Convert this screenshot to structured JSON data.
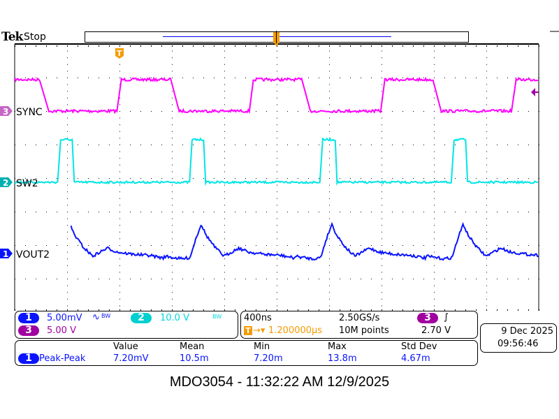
{
  "header": {
    "brand": "Tek",
    "acq_state": "Stop"
  },
  "colors": {
    "ch1": "#0a14ff",
    "ch2": "#00e5e5",
    "ch3": "#ff00ff",
    "ch3_badge": "#a000a0",
    "trigger": "#f59b00"
  },
  "channels": [
    {
      "num": "1",
      "label": "VOUT2",
      "scale": "5.00mV",
      "coupling_icon": "∿",
      "bw": "BW"
    },
    {
      "num": "2",
      "label": "SW2",
      "scale": "10.0 V",
      "bw": "BW"
    },
    {
      "num": "3",
      "label": "SYNC",
      "scale": "5.00 V"
    }
  ],
  "timebase": {
    "scale": "400ns",
    "sample_rate": "2.50GS/s",
    "delay": "1.200000µs",
    "record": "10M points"
  },
  "trigger": {
    "source": "3",
    "slope": "rising",
    "slope_glyph": "∫",
    "level": "2.70 V",
    "marker": "T"
  },
  "datetime": {
    "date": "9 Dec  2025",
    "time": "09:56:46"
  },
  "measurement": {
    "headers": [
      "Value",
      "Mean",
      "Min",
      "Max",
      "Std Dev"
    ],
    "row": {
      "source": "1",
      "name": "Peak-Peak",
      "values": [
        "7.20mV",
        "10.5m",
        "7.20m",
        "13.8m",
        "4.67m"
      ]
    }
  },
  "caption": "MDO3054 - 11:32:22 AM   12/9/2025",
  "chart_data": {
    "type": "line",
    "x_unit": "ns",
    "xlim": [
      0,
      4000
    ],
    "x_divisions": 10,
    "y_divisions": 8,
    "grid": true,
    "series": [
      {
        "name": "SYNC",
        "channel": 3,
        "unit": "V",
        "low": 0,
        "high": 4.7,
        "edges_ns": [
          [
            200,
            "fall"
          ],
          [
            784,
            "rise"
          ],
          [
            1195,
            "fall"
          ],
          [
            1792,
            "rise"
          ],
          [
            2197,
            "fall"
          ],
          [
            2795,
            "rise"
          ],
          [
            3195,
            "fall"
          ],
          [
            3797,
            "rise"
          ]
        ]
      },
      {
        "name": "SW2",
        "channel": 2,
        "unit": "V",
        "low": 0,
        "high": 12.7,
        "pulses_ns": [
          [
            336,
            443
          ],
          [
            1339,
            1445
          ],
          [
            2336,
            2448
          ],
          [
            3339,
            3445
          ]
        ]
      },
      {
        "name": "VOUT2",
        "channel": 1,
        "unit": "mV",
        "pulse_response_offsets_ns": [
          -200,
          -60,
          0,
          40,
          85,
          120,
          190,
          260,
          370,
          450,
          560,
          700,
          800,
          900
        ],
        "pulse_response_mV": [
          -0.4,
          -0.8,
          -0.6,
          2.0,
          4.4,
          2.8,
          0.9,
          -0.4,
          0.8,
          0.2,
          -0.1,
          -0.3,
          -0.7,
          -0.9
        ]
      }
    ]
  }
}
